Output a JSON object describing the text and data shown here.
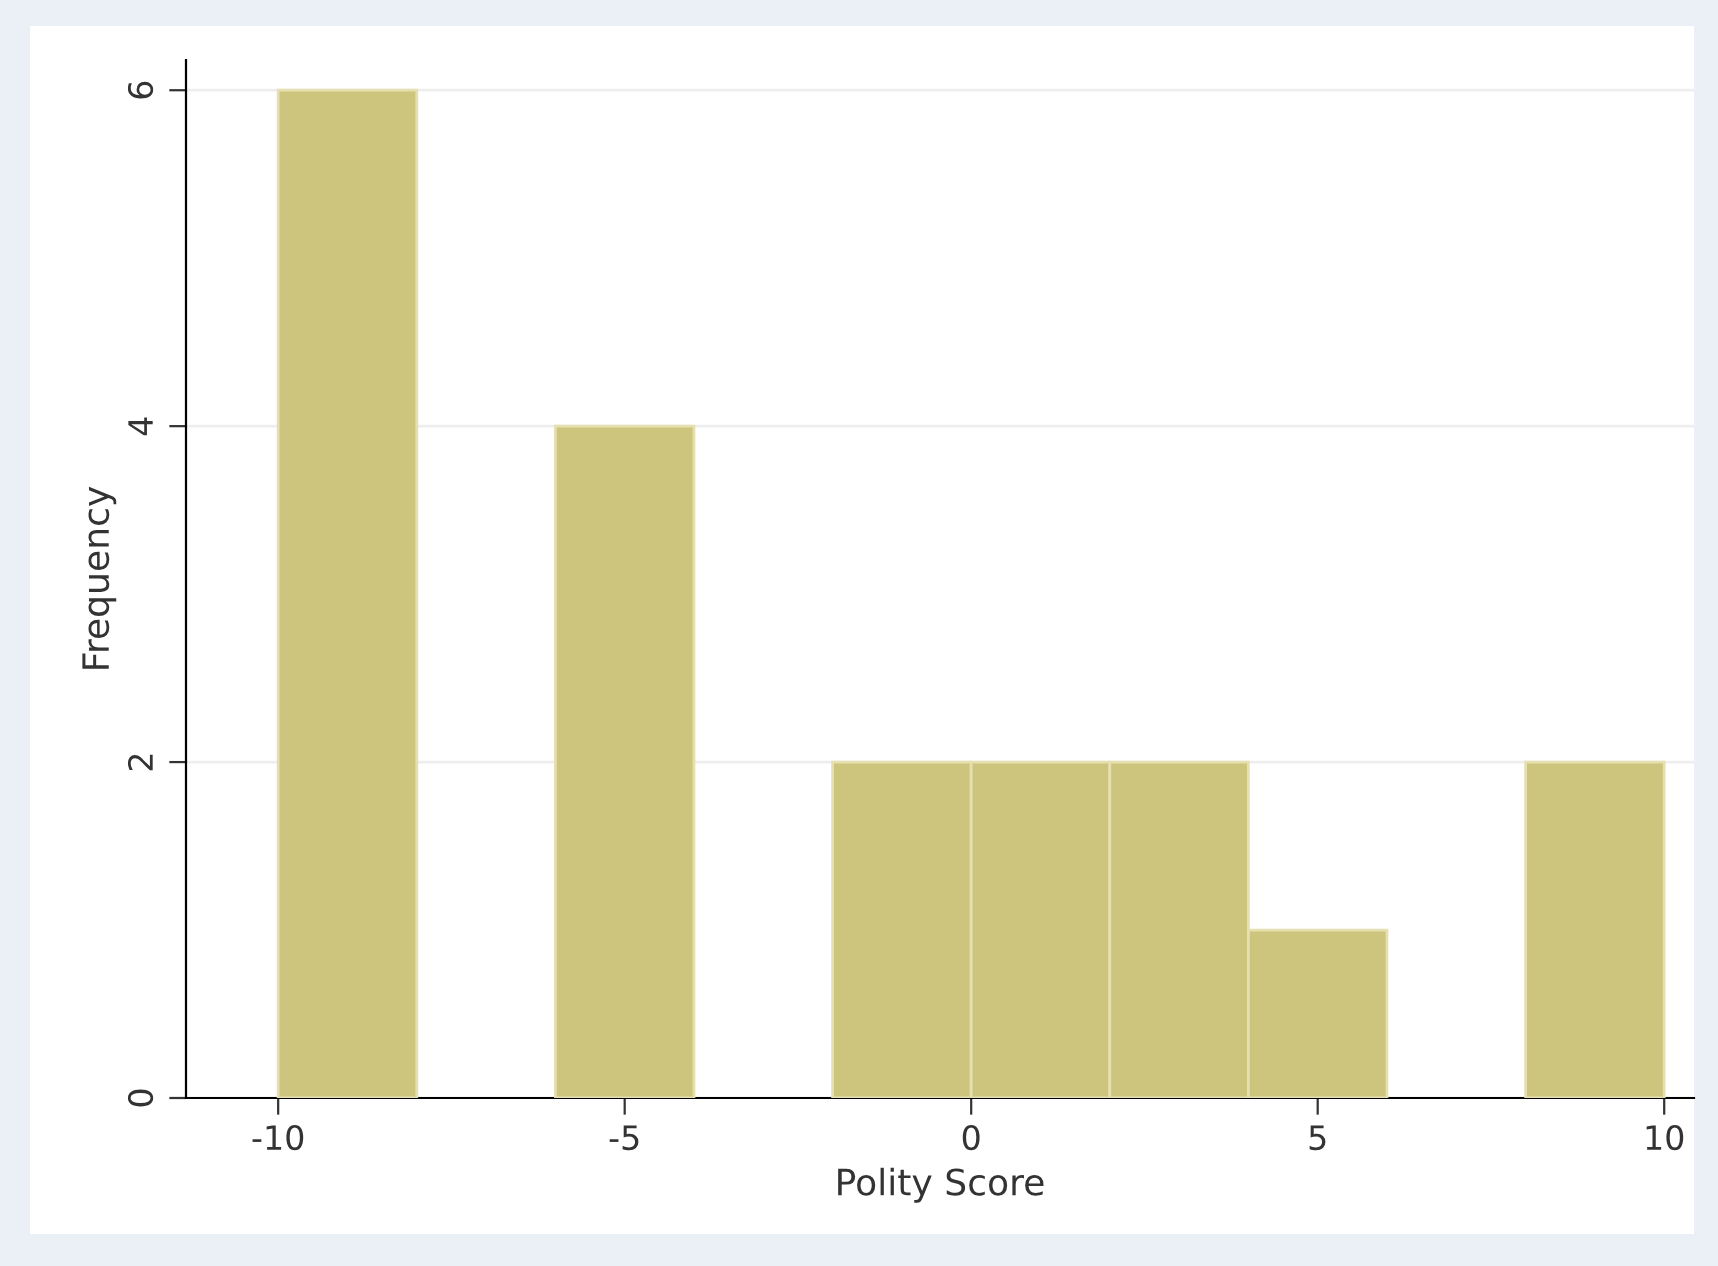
{
  "chart_data": {
    "type": "histogram",
    "xlabel": "Polity Score",
    "ylabel": "Frequency",
    "bins": [
      -10,
      -8,
      -6,
      -4,
      -2,
      0,
      2,
      4,
      6,
      8,
      10
    ],
    "values": [
      6,
      0,
      4,
      0,
      2,
      2,
      2,
      1,
      0,
      2
    ],
    "color": "#cdc47e",
    "xlim": [
      -11.33,
      10.43
    ],
    "ylim": [
      0,
      6.18
    ],
    "xticks": [
      {
        "value": -10,
        "label": "-10"
      },
      {
        "value": -5,
        "label": "-5"
      },
      0,
      5,
      10
    ],
    "yticks": [
      0,
      2,
      4,
      6
    ],
    "grid": "y"
  }
}
